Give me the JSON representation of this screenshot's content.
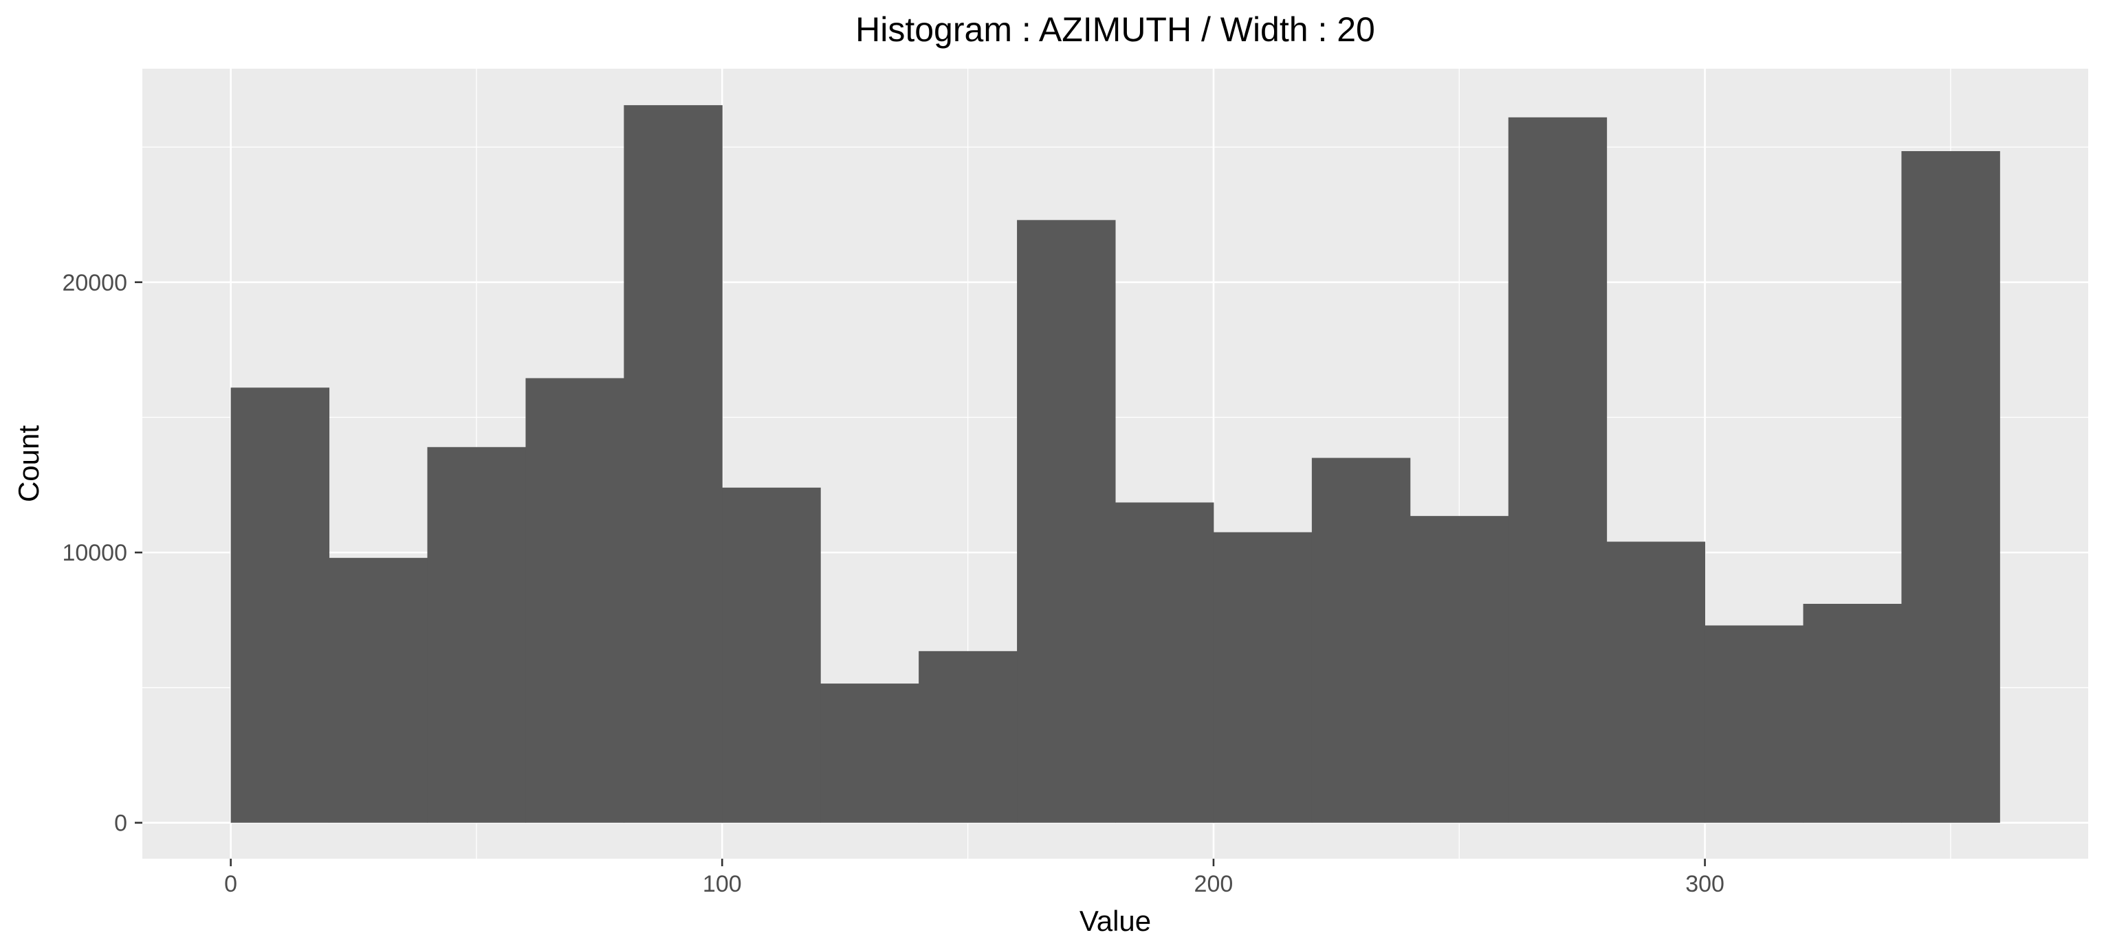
{
  "chart_data": {
    "type": "bar",
    "title": "Histogram : AZIMUTH / Width : 20",
    "xlabel": "Value",
    "ylabel": "Count",
    "bin_width": 20,
    "bins": [
      {
        "x0": 0,
        "x1": 20,
        "count": 16100
      },
      {
        "x0": 20,
        "x1": 40,
        "count": 9800
      },
      {
        "x0": 40,
        "x1": 60,
        "count": 13900
      },
      {
        "x0": 60,
        "x1": 80,
        "count": 16450
      },
      {
        "x0": 80,
        "x1": 100,
        "count": 26550
      },
      {
        "x0": 100,
        "x1": 120,
        "count": 12400
      },
      {
        "x0": 120,
        "x1": 140,
        "count": 5150
      },
      {
        "x0": 140,
        "x1": 160,
        "count": 6350
      },
      {
        "x0": 160,
        "x1": 180,
        "count": 22300
      },
      {
        "x0": 180,
        "x1": 200,
        "count": 11850
      },
      {
        "x0": 200,
        "x1": 220,
        "count": 10750
      },
      {
        "x0": 220,
        "x1": 240,
        "count": 13500
      },
      {
        "x0": 240,
        "x1": 260,
        "count": 11350
      },
      {
        "x0": 260,
        "x1": 280,
        "count": 26100
      },
      {
        "x0": 280,
        "x1": 300,
        "count": 10400
      },
      {
        "x0": 300,
        "x1": 320,
        "count": 7300
      },
      {
        "x0": 320,
        "x1": 340,
        "count": 8100
      },
      {
        "x0": 340,
        "x1": 360,
        "count": 24850
      }
    ],
    "xlim": [
      -18,
      378
    ],
    "ylim": [
      -1330,
      27900
    ],
    "x_major_ticks": [
      0,
      100,
      200,
      300
    ],
    "x_minor_ticks": [
      50,
      150,
      250,
      350
    ],
    "x_tick_labels": [
      "0",
      "100",
      "200",
      "300"
    ],
    "y_major_ticks": [
      0,
      10000,
      20000
    ],
    "y_minor_ticks": [
      5000,
      15000,
      25000
    ],
    "y_tick_labels": [
      "0",
      "10000",
      "20000"
    ],
    "grid": true,
    "legend": "none",
    "colors": {
      "bar": "#595959",
      "panel": "#EBEBEB",
      "grid": "#FFFFFF"
    }
  }
}
